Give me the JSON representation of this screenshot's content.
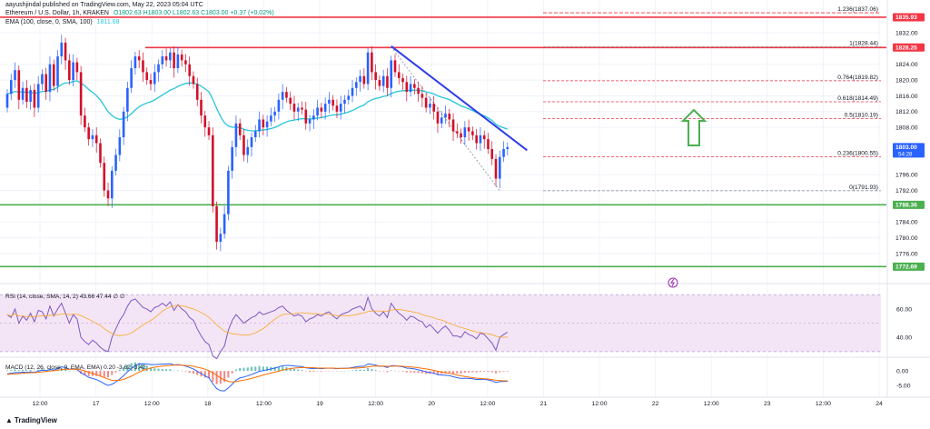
{
  "header": {
    "publisher": "aayushjindal published on TradingView.com, May 22, 2023 05:04 UTC",
    "symbol": "Ethereum / U.S. Dollar, 1h, KRAKEN",
    "ohlc": "O1802.63 H1803.00 L1802.63 C1803.00 +0.37 (+0.02%)",
    "ema_legend": "EMA (100, close, 0, SMA, 100)",
    "ema_value": "1811.68"
  },
  "footer": {
    "brand": "TradingView"
  },
  "colors": {
    "up": "#2962ff",
    "down": "#d1102a",
    "ema": "#26c6da",
    "resistance": "#f23645",
    "support": "#4caf50",
    "trendline": "#2f3ce8",
    "fib": "#f23645",
    "fib_dotted": "#868993",
    "arrow": "#4caf50",
    "rsi_line": "#7e57c2",
    "rsi_band": "#f3e5f5",
    "macd_line": "#2962ff",
    "signal_line": "#ff6d00"
  },
  "chart_data": [
    {
      "type": "candlestick",
      "title": "Ethereum / U.S. Dollar, 1h, KRAKEN",
      "ylim": [
        1770,
        1838
      ],
      "y_ticks": [
        1776,
        1780,
        1784,
        1792,
        1796,
        1808,
        1812,
        1816,
        1820,
        1824,
        1832
      ],
      "x_ticks": [
        "12:00",
        "17",
        "12:00",
        "18",
        "12:00",
        "19",
        "12:00",
        "20",
        "12:00",
        "21",
        "12:00",
        "22",
        "12:00",
        "23",
        "12:00",
        "24"
      ],
      "price_labels": [
        {
          "value": 1835.93,
          "text": "1835.93",
          "color": "#f23645"
        },
        {
          "value": 1828.25,
          "text": "1828.25",
          "color": "#f23645"
        },
        {
          "value": 1803.0,
          "text": "1803.00",
          "sub": "54:28",
          "color": "#2962ff"
        },
        {
          "value": 1788.36,
          "text": "1788.36",
          "color": "#4caf50"
        },
        {
          "value": 1772.69,
          "text": "1772.69",
          "color": "#4caf50"
        }
      ],
      "horizontal_levels": [
        {
          "name": "resistance-upper",
          "value": 1835.93
        },
        {
          "name": "resistance-lower",
          "value": 1828.25
        },
        {
          "name": "support-upper",
          "value": 1788.36
        },
        {
          "name": "support-lower",
          "value": 1772.69
        }
      ],
      "fibonacci": [
        {
          "ratio": "1.236",
          "value": 1837.06,
          "label": "1.236(1837.06)"
        },
        {
          "ratio": "1",
          "value": 1828.44,
          "label": "1(1828.44)"
        },
        {
          "ratio": "0.764",
          "value": 1819.82,
          "label": "0.764(1819.82)"
        },
        {
          "ratio": "0.618",
          "value": 1814.49,
          "label": "0.618(1814.49)"
        },
        {
          "ratio": "0.5",
          "value": 1810.19,
          "label": "0.5(1810.19)"
        },
        {
          "ratio": "0.236",
          "value": 1800.55,
          "label": "0.236(1800.55)"
        },
        {
          "ratio": "0",
          "value": 1791.93,
          "label": "0(1791.93)"
        }
      ],
      "trendline": {
        "from": {
          "bar": 99,
          "price": 1828.6
        },
        "to": {
          "bar": 127,
          "price": 1801.5
        }
      },
      "closes": [
        1816.5,
        1820.0,
        1822.5,
        1815.0,
        1818.0,
        1814.5,
        1817.5,
        1813.0,
        1819.0,
        1821.5,
        1817.0,
        1824.0,
        1818.5,
        1826.0,
        1829.5,
        1825.0,
        1820.0,
        1824.5,
        1822.0,
        1811.0,
        1808.0,
        1805.0,
        1806.0,
        1804.0,
        1799.0,
        1792.0,
        1790.0,
        1797.0,
        1801.0,
        1805.5,
        1812.0,
        1818.0,
        1823.0,
        1826.0,
        1825.0,
        1822.0,
        1820.0,
        1819.0,
        1822.0,
        1824.0,
        1826.0,
        1825.0,
        1827.0,
        1823.0,
        1826.5,
        1825.0,
        1824.0,
        1821.0,
        1819.0,
        1815.0,
        1811.0,
        1808.0,
        1806.0,
        1788.0,
        1779.0,
        1781.0,
        1786.0,
        1797.0,
        1803.0,
        1809.0,
        1806.0,
        1801.0,
        1803.0,
        1805.5,
        1807.0,
        1810.0,
        1808.0,
        1809.5,
        1811.0,
        1812.0,
        1815.0,
        1817.0,
        1815.5,
        1814.0,
        1812.0,
        1813.0,
        1812.5,
        1809.0,
        1810.0,
        1811.0,
        1813.0,
        1812.0,
        1814.0,
        1815.0,
        1813.5,
        1812.0,
        1814.0,
        1815.0,
        1816.0,
        1818.0,
        1819.5,
        1821.0,
        1819.0,
        1827.0,
        1822.0,
        1820.0,
        1818.5,
        1821.0,
        1818.0,
        1825.0,
        1822.0,
        1820.5,
        1819.5,
        1817.0,
        1819.0,
        1818.0,
        1816.5,
        1815.5,
        1813.0,
        1814.0,
        1812.0,
        1809.0,
        1810.5,
        1811.5,
        1810.0,
        1807.0,
        1806.5,
        1805.5,
        1808.0,
        1807.0,
        1806.0,
        1804.0,
        1806.0,
        1805.0,
        1802.5,
        1800.0,
        1795.0,
        1800.5,
        1802.5,
        1803.0
      ],
      "first_open": 1813.0
    },
    {
      "type": "line",
      "title": "RSI (14, close, SMA, 14, 2)",
      "legend_text": "RSI (14, close, SMA, 14, 2)",
      "legend_values": [
        "43.66",
        "47.44",
        "∅",
        "∅"
      ],
      "y_ticks": [
        60.0,
        40.0
      ],
      "ylim": [
        28,
        74
      ],
      "series": [
        {
          "name": "RSI",
          "values": [
            56,
            54,
            60,
            50,
            55,
            52,
            57,
            51,
            59,
            58,
            53,
            62,
            55,
            60,
            64,
            57,
            50,
            56,
            53,
            40,
            37,
            35,
            38,
            36,
            33,
            31,
            30,
            40,
            46,
            52,
            56,
            62,
            66,
            67,
            64,
            61,
            60,
            58,
            61,
            62,
            64,
            62,
            65,
            59,
            63,
            60,
            58,
            54,
            52,
            46,
            41,
            37,
            35,
            27,
            25,
            30,
            34,
            45,
            52,
            56,
            53,
            50,
            52,
            54,
            55,
            58,
            56,
            57,
            58,
            59,
            61,
            62,
            59,
            57,
            55,
            56,
            55,
            51,
            53,
            54,
            56,
            55,
            57,
            58,
            55,
            53,
            56,
            57,
            58,
            60,
            61,
            62,
            59,
            68,
            60,
            57,
            55,
            58,
            54,
            64,
            60,
            57,
            55,
            52,
            55,
            54,
            52,
            51,
            47,
            49,
            46,
            43,
            46,
            48,
            45,
            41,
            41,
            40,
            44,
            42,
            41,
            39,
            43,
            42,
            39,
            36,
            31,
            40,
            42,
            43.66
          ]
        }
      ]
    },
    {
      "type": "bar",
      "title": "MACD (12, 26, close, 9, EMA, EMA)",
      "legend_text": "MACD (12, 26, close, 9, EMA, EMA)",
      "legend_values": [
        "0.20",
        "-3.62",
        "-3.42"
      ],
      "y_ticks": [
        0.0,
        -5.0
      ],
      "ylim": [
        -7.5,
        3.5
      ],
      "series": [
        {
          "name": "MACD",
          "values": [
            -1.0,
            -0.8,
            -0.5,
            -0.6,
            -0.4,
            -0.5,
            -0.3,
            -0.5,
            -0.1,
            0.3,
            0.1,
            0.6,
            0.3,
            0.8,
            1.4,
            1.2,
            0.6,
            0.7,
            0.5,
            -0.6,
            -1.4,
            -2.2,
            -2.6,
            -3.0,
            -3.6,
            -4.4,
            -5.0,
            -4.6,
            -3.8,
            -2.8,
            -1.6,
            -0.3,
            0.9,
            1.9,
            2.4,
            2.5,
            2.4,
            2.2,
            2.2,
            2.3,
            2.4,
            2.4,
            2.5,
            2.1,
            2.2,
            2.0,
            1.7,
            1.2,
            0.7,
            -0.1,
            -0.9,
            -1.7,
            -2.4,
            -4.4,
            -6.1,
            -6.8,
            -6.9,
            -5.9,
            -4.6,
            -3.2,
            -2.4,
            -2.1,
            -1.7,
            -1.2,
            -0.7,
            -0.1,
            0.1,
            0.4,
            0.7,
            1.0,
            1.4,
            1.8,
            1.9,
            1.9,
            1.7,
            1.6,
            1.5,
            1.1,
            0.9,
            0.8,
            0.9,
            0.8,
            0.9,
            1.0,
            0.9,
            0.8,
            0.9,
            0.9,
            1.0,
            1.2,
            1.4,
            1.6,
            1.6,
            2.4,
            2.3,
            2.0,
            1.6,
            1.6,
            1.2,
            1.8,
            1.8,
            1.6,
            1.4,
            1.0,
            0.9,
            0.7,
            0.4,
            0.1,
            -0.3,
            -0.5,
            -0.8,
            -1.3,
            -1.4,
            -1.5,
            -1.6,
            -2.0,
            -2.3,
            -2.6,
            -2.5,
            -2.6,
            -2.7,
            -3.0,
            -2.9,
            -2.9,
            -3.1,
            -3.4,
            -4.0,
            -3.7,
            -3.6,
            -3.62
          ]
        },
        {
          "name": "Signal",
          "values": [
            -1.2,
            -1.1,
            -1.0,
            -0.9,
            -0.8,
            -0.7,
            -0.6,
            -0.6,
            -0.5,
            -0.3,
            -0.2,
            0.0,
            0.1,
            0.2,
            0.5,
            0.6,
            0.6,
            0.6,
            0.6,
            0.4,
            0.0,
            -0.4,
            -0.9,
            -1.3,
            -1.8,
            -2.3,
            -2.8,
            -3.2,
            -3.3,
            -3.2,
            -2.9,
            -2.4,
            -1.8,
            -1.1,
            -0.4,
            0.2,
            0.6,
            1.0,
            1.3,
            1.5,
            1.7,
            1.8,
            1.9,
            2.0,
            2.0,
            2.0,
            1.9,
            1.8,
            1.6,
            1.3,
            1.0,
            0.6,
            0.1,
            -0.6,
            -1.5,
            -2.4,
            -3.1,
            -3.6,
            -3.8,
            -3.7,
            -3.4,
            -3.2,
            -2.9,
            -2.6,
            -2.2,
            -1.8,
            -1.4,
            -1.1,
            -0.7,
            -0.4,
            -0.1,
            0.3,
            0.6,
            0.8,
            1.0,
            1.1,
            1.2,
            1.2,
            1.2,
            1.1,
            1.0,
            1.0,
            1.0,
            1.0,
            1.0,
            0.9,
            0.9,
            0.9,
            0.9,
            1.0,
            1.0,
            1.1,
            1.2,
            1.4,
            1.6,
            1.7,
            1.7,
            1.7,
            1.6,
            1.6,
            1.7,
            1.7,
            1.6,
            1.5,
            1.4,
            1.3,
            1.1,
            0.9,
            0.7,
            0.5,
            0.2,
            -0.1,
            -0.4,
            -0.6,
            -0.8,
            -1.1,
            -1.4,
            -1.7,
            -1.9,
            -2.1,
            -2.3,
            -2.5,
            -2.6,
            -2.7,
            -2.8,
            -3.0,
            -3.2,
            -3.3,
            -3.4,
            -3.42
          ]
        }
      ]
    }
  ]
}
